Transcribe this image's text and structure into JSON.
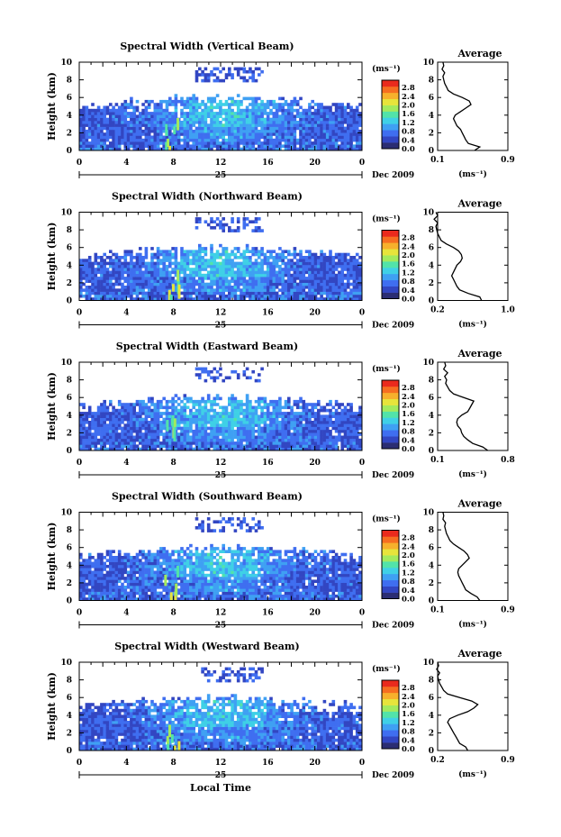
{
  "chart_data": {
    "type": "heatmap",
    "x_label": "Local Time",
    "colorbar": {
      "unit": "(ms⁻¹)",
      "ticks": [
        "0.0",
        "0.4",
        "0.8",
        "1.2",
        "1.6",
        "2.0",
        "2.4",
        "2.8"
      ],
      "colors": [
        "#2b2d73",
        "#3246c2",
        "#3f6ef0",
        "#3fa0f3",
        "#3fd0e6",
        "#52e3a9",
        "#a3ea5d",
        "#e7e43b",
        "#f7b02c",
        "#f66e20",
        "#ea2a1d"
      ]
    },
    "x_ticks": [
      "0",
      "4",
      "8",
      "12",
      "16",
      "20",
      "0"
    ],
    "date_label": "25",
    "month_label": "Dec 2009",
    "y_label": "Height (km)",
    "y_ticks": [
      "0",
      "2",
      "4",
      "6",
      "8",
      "10"
    ],
    "avg_label": "Average",
    "avg_x_unit": "(ms⁻¹)",
    "panels": [
      {
        "title": "Spectral Width (Vertical Beam)",
        "avg_ticks": [
          "0.1",
          "0.9"
        ],
        "profile": [
          [
            0.0,
            0.52
          ],
          [
            0.4,
            0.58
          ],
          [
            0.8,
            0.45
          ],
          [
            1.2,
            0.42
          ],
          [
            1.6,
            0.4
          ],
          [
            2.0,
            0.38
          ],
          [
            2.4,
            0.36
          ],
          [
            2.8,
            0.32
          ],
          [
            3.2,
            0.3
          ],
          [
            3.6,
            0.28
          ],
          [
            4.0,
            0.3
          ],
          [
            4.4,
            0.36
          ],
          [
            4.8,
            0.42
          ],
          [
            5.2,
            0.48
          ],
          [
            5.6,
            0.46
          ],
          [
            6.0,
            0.38
          ],
          [
            6.4,
            0.28
          ],
          [
            6.8,
            0.22
          ],
          [
            7.2,
            0.2
          ],
          [
            7.6,
            0.18
          ],
          [
            8.0,
            0.17
          ],
          [
            8.4,
            0.16
          ],
          [
            8.8,
            0.18
          ],
          [
            9.2,
            0.15
          ],
          [
            9.6,
            0.17
          ],
          [
            10.0,
            0.16
          ]
        ]
      },
      {
        "title": "Spectral Width (Northward Beam)",
        "avg_ticks": [
          "0.2",
          "1.0"
        ],
        "profile": [
          [
            0.0,
            0.7
          ],
          [
            0.4,
            0.68
          ],
          [
            0.8,
            0.55
          ],
          [
            1.2,
            0.45
          ],
          [
            1.6,
            0.42
          ],
          [
            2.0,
            0.4
          ],
          [
            2.4,
            0.38
          ],
          [
            2.8,
            0.36
          ],
          [
            3.2,
            0.38
          ],
          [
            3.6,
            0.4
          ],
          [
            4.0,
            0.42
          ],
          [
            4.4,
            0.46
          ],
          [
            4.8,
            0.48
          ],
          [
            5.2,
            0.47
          ],
          [
            5.6,
            0.44
          ],
          [
            6.0,
            0.38
          ],
          [
            6.4,
            0.3
          ],
          [
            6.8,
            0.24
          ],
          [
            7.2,
            0.22
          ],
          [
            7.6,
            0.2
          ],
          [
            8.0,
            0.19
          ],
          [
            8.4,
            0.18
          ],
          [
            8.8,
            0.2
          ],
          [
            9.2,
            0.16
          ],
          [
            9.6,
            0.2
          ],
          [
            10.0,
            0.18
          ]
        ]
      },
      {
        "title": "Spectral Width (Eastward Beam)",
        "avg_ticks": [
          "0.1",
          "0.8"
        ],
        "profile": [
          [
            0.0,
            0.6
          ],
          [
            0.4,
            0.55
          ],
          [
            0.8,
            0.45
          ],
          [
            1.2,
            0.4
          ],
          [
            1.6,
            0.36
          ],
          [
            2.0,
            0.34
          ],
          [
            2.4,
            0.33
          ],
          [
            2.8,
            0.3
          ],
          [
            3.2,
            0.29
          ],
          [
            3.6,
            0.3
          ],
          [
            4.0,
            0.34
          ],
          [
            4.4,
            0.4
          ],
          [
            4.8,
            0.42
          ],
          [
            5.2,
            0.44
          ],
          [
            5.6,
            0.46
          ],
          [
            6.0,
            0.36
          ],
          [
            6.4,
            0.26
          ],
          [
            6.8,
            0.22
          ],
          [
            7.2,
            0.2
          ],
          [
            7.6,
            0.18
          ],
          [
            8.0,
            0.19
          ],
          [
            8.4,
            0.17
          ],
          [
            8.8,
            0.2
          ],
          [
            9.2,
            0.16
          ],
          [
            9.6,
            0.18
          ],
          [
            10.0,
            0.17
          ]
        ]
      },
      {
        "title": "Spectral Width (Southward Beam)",
        "avg_ticks": [
          "0.1",
          "0.9"
        ],
        "profile": [
          [
            0.0,
            0.58
          ],
          [
            0.4,
            0.55
          ],
          [
            0.8,
            0.48
          ],
          [
            1.2,
            0.42
          ],
          [
            1.6,
            0.4
          ],
          [
            2.0,
            0.38
          ],
          [
            2.4,
            0.36
          ],
          [
            2.8,
            0.34
          ],
          [
            3.2,
            0.33
          ],
          [
            3.6,
            0.34
          ],
          [
            4.0,
            0.38
          ],
          [
            4.4,
            0.42
          ],
          [
            4.8,
            0.46
          ],
          [
            5.2,
            0.44
          ],
          [
            5.6,
            0.4
          ],
          [
            6.0,
            0.34
          ],
          [
            6.4,
            0.28
          ],
          [
            6.8,
            0.24
          ],
          [
            7.2,
            0.22
          ],
          [
            7.6,
            0.2
          ],
          [
            8.0,
            0.19
          ],
          [
            8.4,
            0.18
          ],
          [
            8.8,
            0.19
          ],
          [
            9.2,
            0.16
          ],
          [
            9.6,
            0.17
          ],
          [
            10.0,
            0.16
          ]
        ]
      },
      {
        "title": "Spectral Width (Westward Beam)",
        "avg_ticks": [
          "0.2",
          "0.9"
        ],
        "profile": [
          [
            0.0,
            0.5
          ],
          [
            0.4,
            0.48
          ],
          [
            0.8,
            0.42
          ],
          [
            1.2,
            0.4
          ],
          [
            1.6,
            0.38
          ],
          [
            2.0,
            0.36
          ],
          [
            2.4,
            0.34
          ],
          [
            2.8,
            0.32
          ],
          [
            3.2,
            0.3
          ],
          [
            3.6,
            0.32
          ],
          [
            4.0,
            0.4
          ],
          [
            4.4,
            0.5
          ],
          [
            4.8,
            0.56
          ],
          [
            5.2,
            0.6
          ],
          [
            5.6,
            0.54
          ],
          [
            6.0,
            0.42
          ],
          [
            6.4,
            0.3
          ],
          [
            6.8,
            0.26
          ],
          [
            7.2,
            0.24
          ],
          [
            7.6,
            0.22
          ],
          [
            8.0,
            0.21
          ],
          [
            8.4,
            0.2
          ],
          [
            8.8,
            0.22
          ],
          [
            9.2,
            0.19
          ],
          [
            9.6,
            0.21
          ],
          [
            10.0,
            0.2
          ]
        ]
      }
    ]
  }
}
